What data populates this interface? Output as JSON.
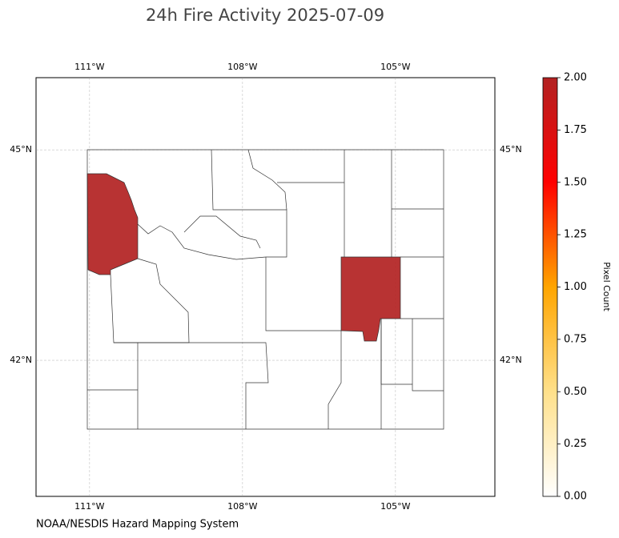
{
  "map": {
    "title": "24h Fire Activity 2025-07-09",
    "xlim": [
      -112.05,
      -103.05
    ],
    "ylim": [
      40.06,
      46.03
    ],
    "xticks": [
      {
        "value": -111,
        "label": "111°W"
      },
      {
        "value": -108,
        "label": "108°W"
      },
      {
        "value": -105,
        "label": "105°W"
      }
    ],
    "yticks": [
      {
        "value": 45,
        "label": "45°N"
      },
      {
        "value": 42,
        "label": "42°N"
      }
    ],
    "grid": true,
    "regions": [
      {
        "value": 2
      },
      {
        "value": 2
      }
    ],
    "colorbar": {
      "label": "Pixel Count",
      "lim": [
        0,
        2
      ],
      "colors": [
        "#ffffff",
        "#ffe08a",
        "#ffa500",
        "#ff0000",
        "#b22222"
      ],
      "ticks": [
        {
          "value": 0,
          "label": "0.00"
        },
        {
          "value": 0.25,
          "label": "0.25"
        },
        {
          "value": 0.5,
          "label": "0.50"
        },
        {
          "value": 0.75,
          "label": "0.75"
        },
        {
          "value": 1,
          "label": "1.00"
        },
        {
          "value": 1.25,
          "label": "1.25"
        },
        {
          "value": 1.5,
          "label": "1.50"
        },
        {
          "value": 1.75,
          "label": "1.75"
        },
        {
          "value": 2,
          "label": "2.00"
        }
      ]
    }
  },
  "footer": "NOAA/NESDIS Hazard Mapping System"
}
